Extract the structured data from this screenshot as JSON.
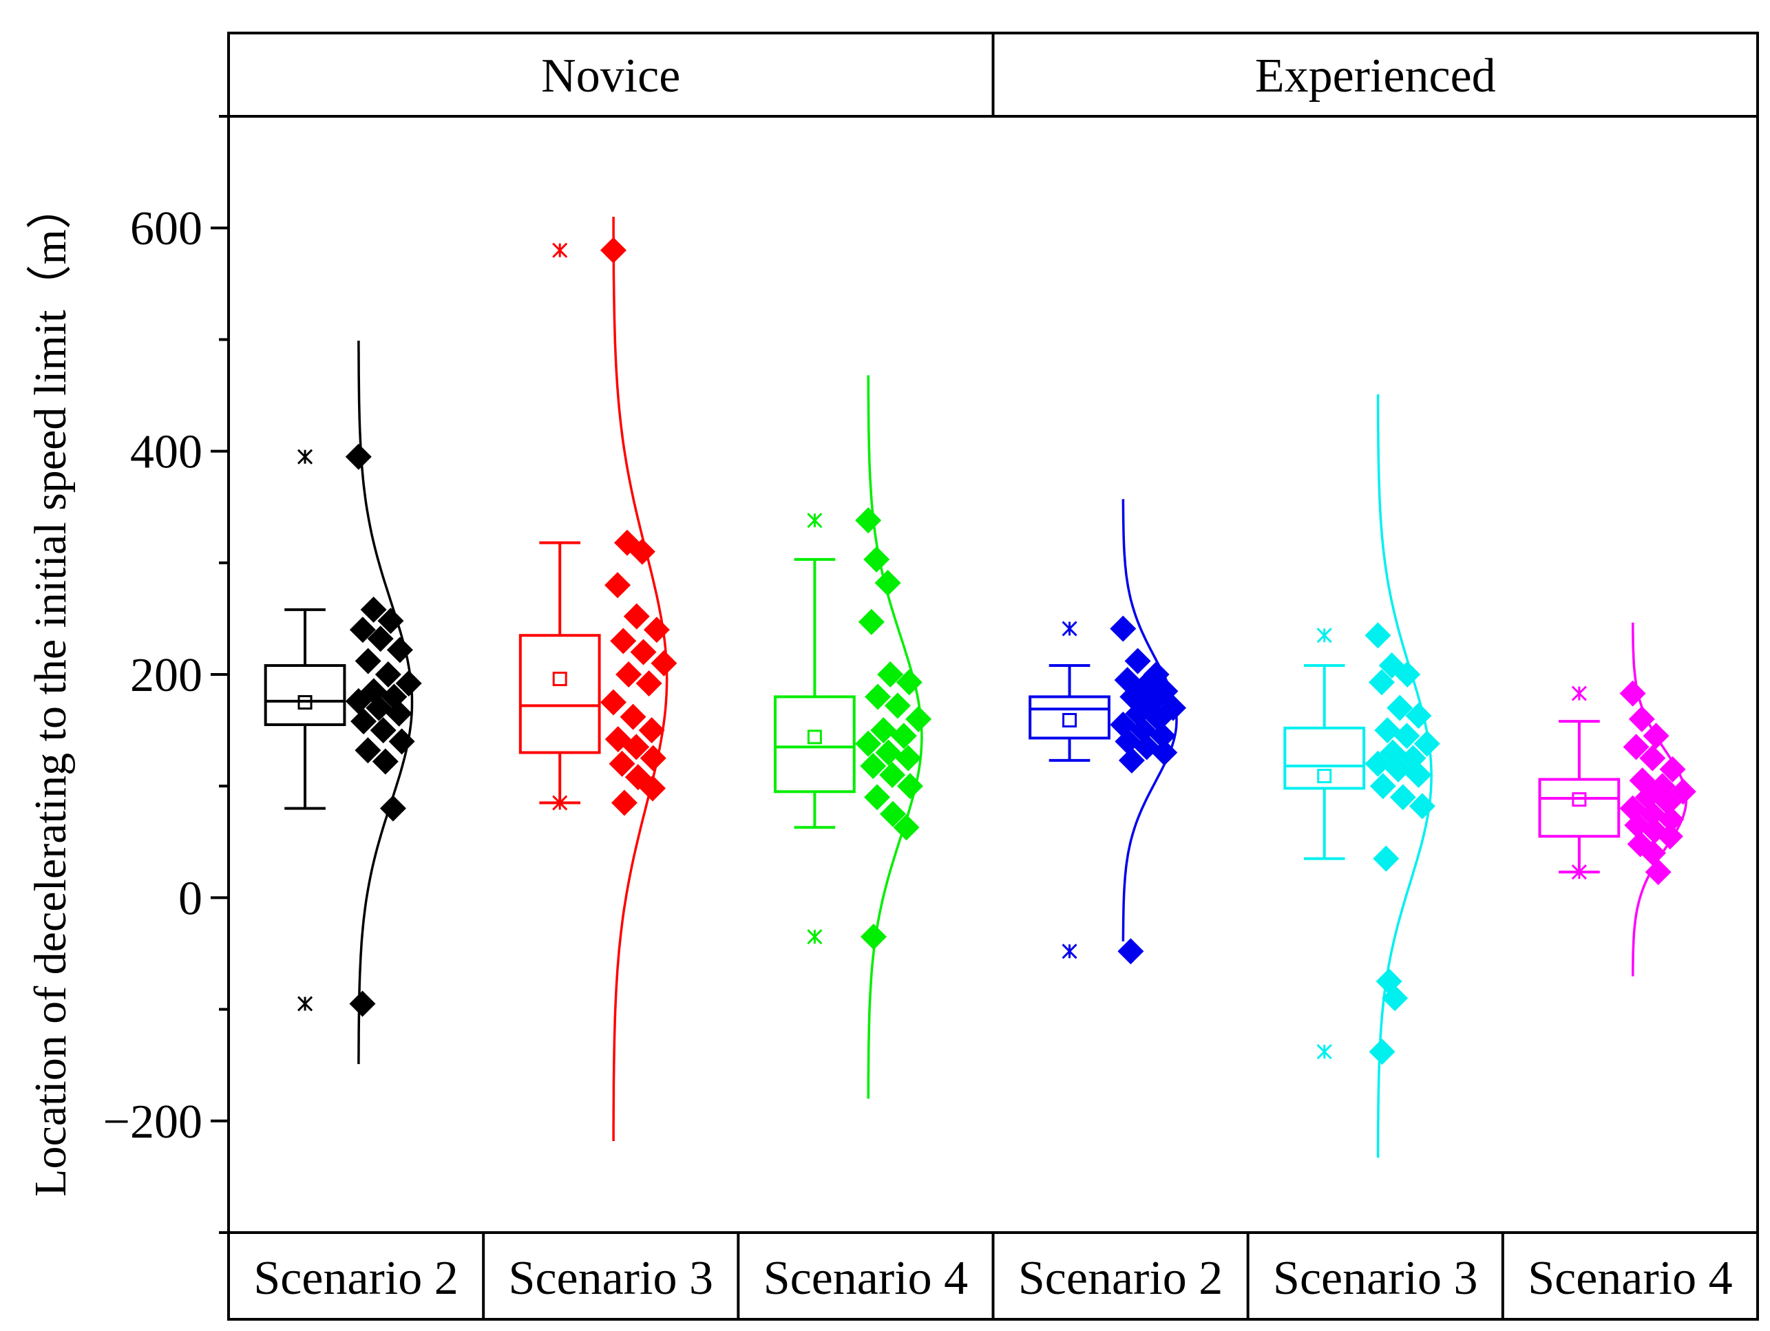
{
  "chart_data": {
    "type": "box",
    "ylabel": "Location of decelerating to the initial speed limit（m）",
    "ylim": [
      -300,
      700
    ],
    "yticks": [
      -200,
      0,
      200,
      400,
      600
    ],
    "ytick_labels": [
      "−200",
      "0",
      "200",
      "400",
      "600"
    ],
    "groups": [
      "Novice",
      "Experienced"
    ],
    "series": [
      {
        "group": "Novice",
        "category": "Scenario 2",
        "color": "#000000",
        "box": {
          "q1": 155,
          "median": 176,
          "q3": 208,
          "whisker_low": 80,
          "whisker_high": 258,
          "mean": 175
        },
        "outliers": [
          395,
          -95
        ],
        "points": [
          395,
          258,
          248,
          240,
          232,
          222,
          212,
          200,
          192,
          185,
          180,
          176,
          170,
          165,
          158,
          150,
          140,
          132,
          122,
          80,
          -95
        ],
        "dist_mean": 175,
        "dist_sd": 90
      },
      {
        "group": "Novice",
        "category": "Scenario 3",
        "color": "#ff0000",
        "box": {
          "q1": 130,
          "median": 172,
          "q3": 235,
          "whisker_low": 85,
          "whisker_high": 318,
          "mean": 196
        },
        "outliers": [
          580,
          85
        ],
        "points": [
          580,
          318,
          310,
          280,
          252,
          240,
          230,
          220,
          210,
          200,
          192,
          175,
          162,
          150,
          142,
          135,
          125,
          120,
          108,
          98,
          85
        ],
        "dist_mean": 196,
        "dist_sd": 115
      },
      {
        "group": "Novice",
        "category": "Scenario 4",
        "color": "#00ee00",
        "box": {
          "q1": 95,
          "median": 135,
          "q3": 180,
          "whisker_low": 63,
          "whisker_high": 303,
          "mean": 144
        },
        "outliers": [
          338,
          -35
        ],
        "points": [
          338,
          303,
          282,
          247,
          200,
          193,
          180,
          172,
          160,
          150,
          145,
          138,
          130,
          125,
          118,
          110,
          100,
          90,
          75,
          63,
          -35
        ],
        "dist_mean": 144,
        "dist_sd": 90
      },
      {
        "group": "Experienced",
        "category": "Scenario 2",
        "color": "#0000ee",
        "box": {
          "q1": 143,
          "median": 169,
          "q3": 180,
          "whisker_low": 123,
          "whisker_high": 208,
          "mean": 159
        },
        "outliers": [
          241,
          -48
        ],
        "points": [
          241,
          212,
          200,
          195,
          190,
          185,
          180,
          175,
          170,
          165,
          160,
          155,
          150,
          145,
          140,
          135,
          130,
          123,
          -48
        ],
        "dist_mean": 159,
        "dist_sd": 55
      },
      {
        "group": "Experienced",
        "category": "Scenario 3",
        "color": "#00f0f0",
        "box": {
          "q1": 98,
          "median": 118,
          "q3": 152,
          "whisker_low": 35,
          "whisker_high": 208,
          "mean": 109
        },
        "outliers": [
          235,
          -138
        ],
        "points": [
          235,
          208,
          200,
          193,
          170,
          163,
          150,
          145,
          138,
          130,
          125,
          120,
          115,
          110,
          100,
          90,
          82,
          35,
          -75,
          -90,
          -138
        ],
        "dist_mean": 109,
        "dist_sd": 95
      },
      {
        "group": "Experienced",
        "category": "Scenario 4",
        "color": "#ff00ff",
        "box": {
          "q1": 55,
          "median": 89,
          "q3": 106,
          "whisker_low": 23,
          "whisker_high": 158,
          "mean": 88
        },
        "outliers": [
          183,
          23
        ],
        "points": [
          183,
          160,
          145,
          135,
          125,
          115,
          105,
          100,
          95,
          90,
          85,
          80,
          75,
          70,
          65,
          60,
          55,
          48,
          40,
          23
        ],
        "dist_mean": 88,
        "dist_sd": 44
      }
    ]
  }
}
